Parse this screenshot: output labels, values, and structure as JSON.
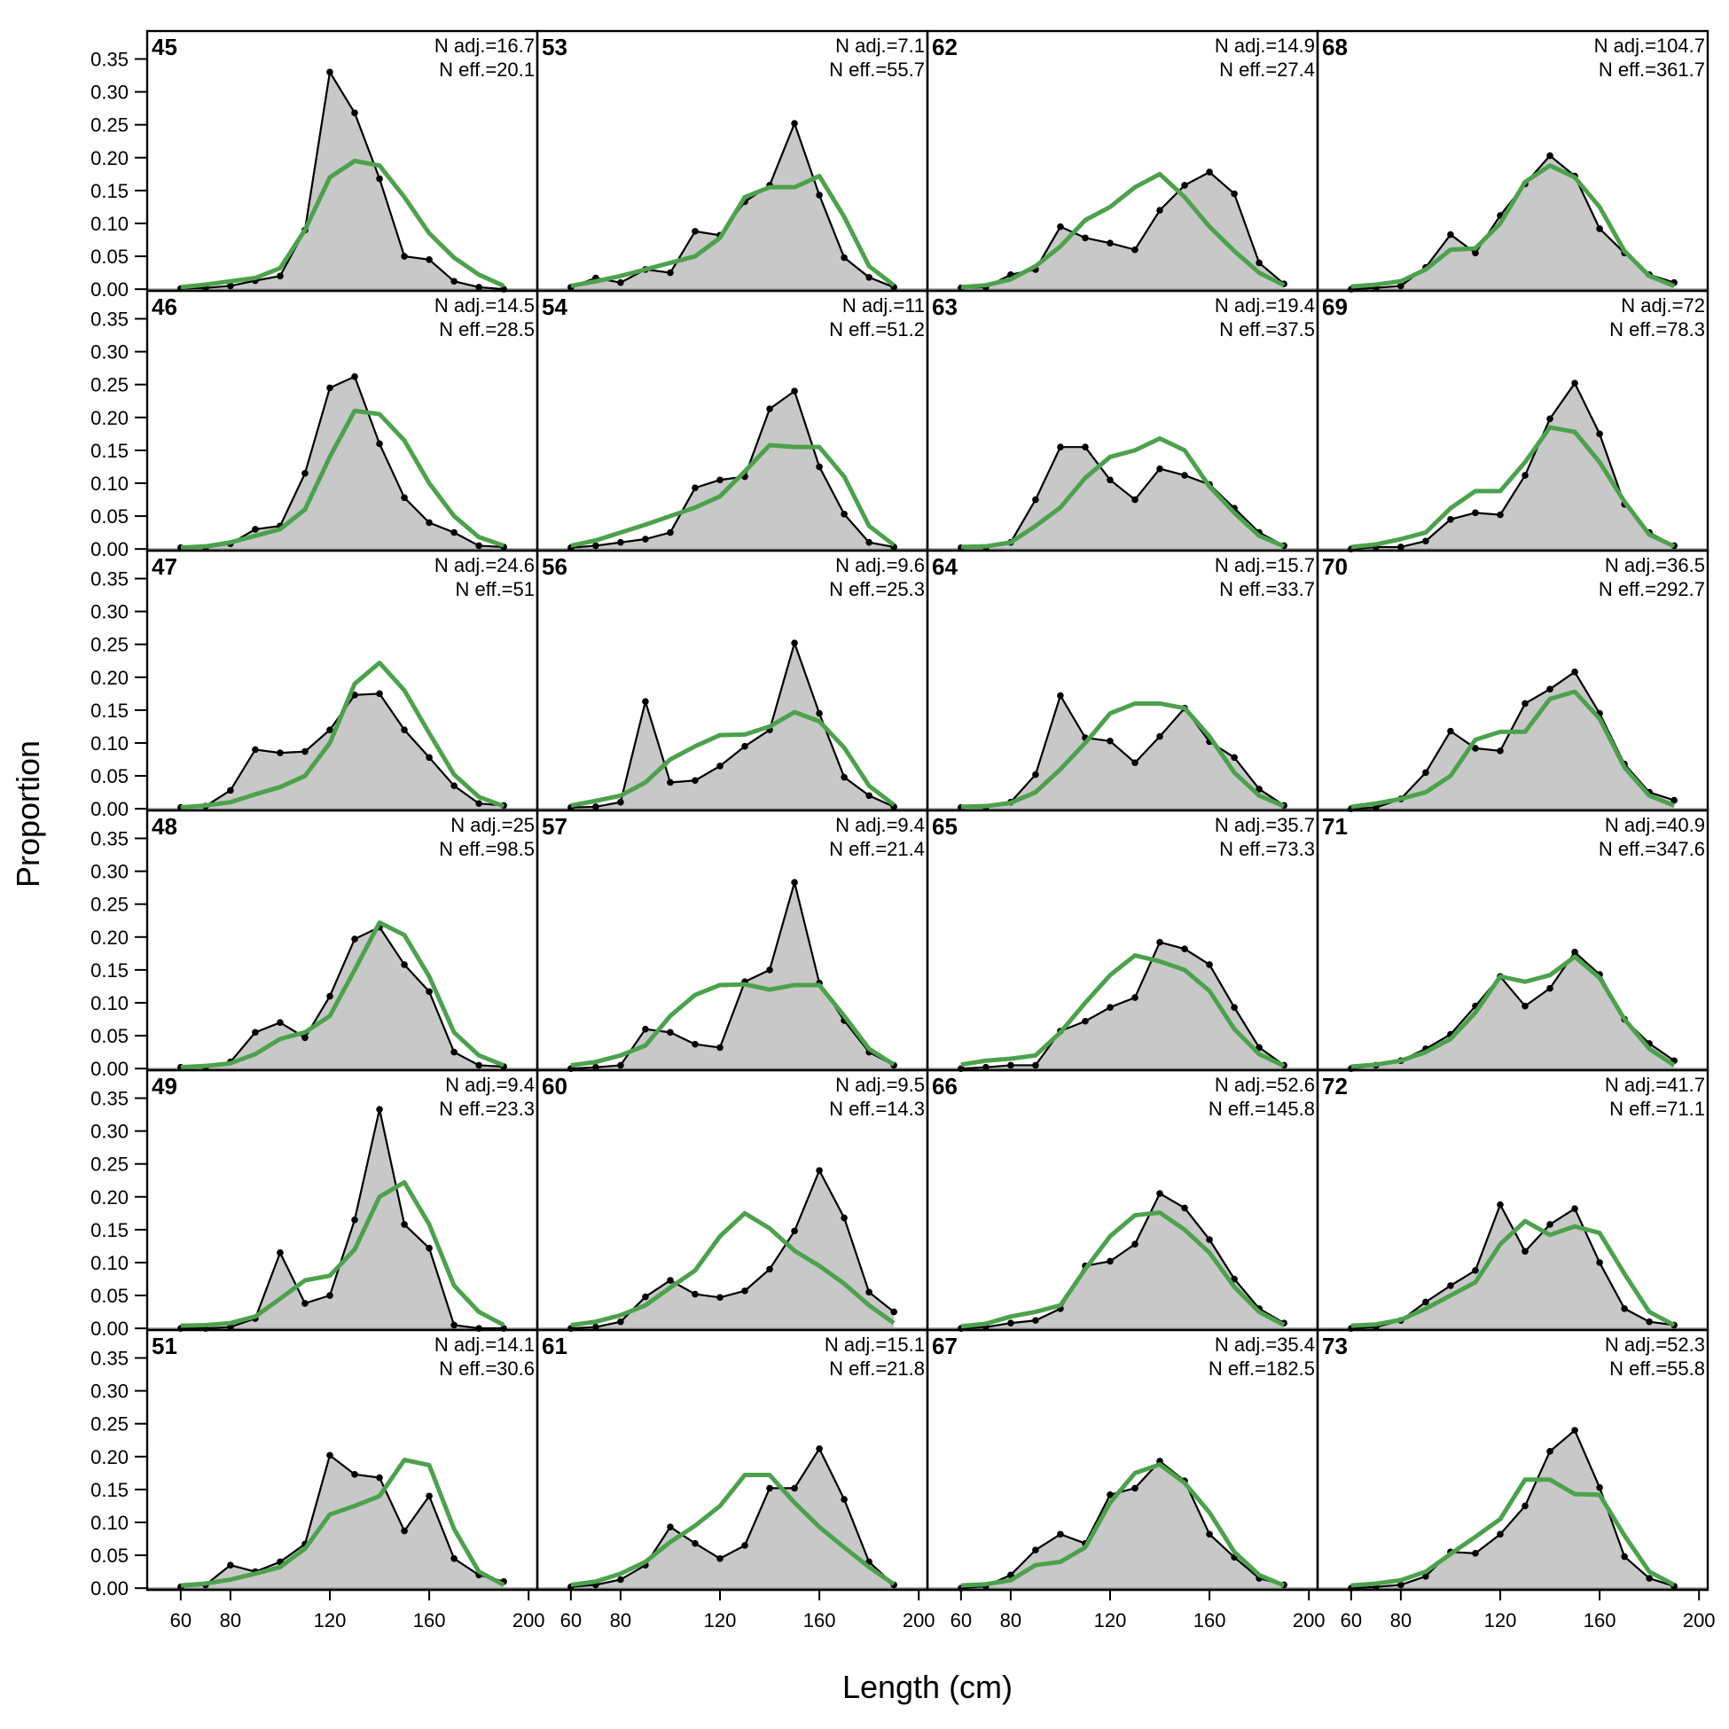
{
  "chart_data": {
    "type": "line",
    "xlabel": "Length (cm)",
    "ylabel": "Proportion",
    "xlim": [
      46.5,
      203.5
    ],
    "ylim": [
      -0.0025,
      0.3925
    ],
    "xticks": [
      60,
      80,
      120,
      160,
      200
    ],
    "yticks": [
      0.0,
      0.05,
      0.1,
      0.15,
      0.2,
      0.25,
      0.3,
      0.35
    ],
    "ytick_labels": [
      "0.00",
      "0.05",
      "0.10",
      "0.15",
      "0.20",
      "0.25",
      "0.30",
      "0.35"
    ],
    "x": [
      60,
      70,
      80,
      90,
      100,
      110,
      120,
      130,
      140,
      150,
      160,
      170,
      180,
      190
    ],
    "colors": {
      "observed_line": "#000000",
      "observed_fill": "#c8c8c8",
      "expected_line": "#4ca24c",
      "zero_line": "#aaaaaa"
    },
    "panel_columns": 4,
    "panel_rows": 6,
    "panels": [
      {
        "id": "45",
        "n_adj": "N adj.=16.7",
        "n_eff": "N eff.=20.1",
        "obs": [
          0.001,
          0.002,
          0.005,
          0.013,
          0.02,
          0.09,
          0.33,
          0.268,
          0.168,
          0.05,
          0.045,
          0.012,
          0.003,
          0.0
        ],
        "exp": [
          0.003,
          0.007,
          0.012,
          0.017,
          0.032,
          0.09,
          0.17,
          0.195,
          0.188,
          0.14,
          0.085,
          0.048,
          0.022,
          0.005
        ]
      },
      {
        "id": "53",
        "n_adj": "N adj.=7.1",
        "n_eff": "N eff.=55.7",
        "obs": [
          0.003,
          0.017,
          0.01,
          0.03,
          0.025,
          0.088,
          0.082,
          0.133,
          0.158,
          0.252,
          0.143,
          0.048,
          0.018,
          0.003
        ],
        "exp": [
          0.005,
          0.012,
          0.02,
          0.03,
          0.04,
          0.05,
          0.078,
          0.14,
          0.155,
          0.155,
          0.172,
          0.11,
          0.035,
          0.006
        ]
      },
      {
        "id": "62",
        "n_adj": "N adj.=14.9",
        "n_eff": "N eff.=27.4",
        "obs": [
          0.002,
          0.003,
          0.022,
          0.03,
          0.095,
          0.078,
          0.07,
          0.06,
          0.12,
          0.158,
          0.178,
          0.145,
          0.04,
          0.008
        ],
        "exp": [
          0.003,
          0.006,
          0.015,
          0.035,
          0.065,
          0.105,
          0.125,
          0.155,
          0.175,
          0.14,
          0.095,
          0.058,
          0.025,
          0.006
        ]
      },
      {
        "id": "68",
        "n_adj": "N adj.=104.7",
        "n_eff": "N eff.=361.7",
        "obs": [
          0.0,
          0.002,
          0.005,
          0.033,
          0.083,
          0.055,
          0.112,
          0.16,
          0.203,
          0.172,
          0.092,
          0.055,
          0.022,
          0.01
        ],
        "exp": [
          0.004,
          0.007,
          0.012,
          0.03,
          0.06,
          0.062,
          0.1,
          0.163,
          0.188,
          0.17,
          0.125,
          0.058,
          0.02,
          0.005
        ]
      },
      {
        "id": "46",
        "n_adj": "N adj.=14.5",
        "n_eff": "N eff.=28.5",
        "obs": [
          0.002,
          0.002,
          0.008,
          0.03,
          0.035,
          0.115,
          0.245,
          0.262,
          0.16,
          0.078,
          0.04,
          0.025,
          0.005,
          0.003
        ],
        "exp": [
          0.002,
          0.004,
          0.01,
          0.02,
          0.03,
          0.06,
          0.14,
          0.21,
          0.205,
          0.165,
          0.1,
          0.05,
          0.018,
          0.005
        ]
      },
      {
        "id": "54",
        "n_adj": "N adj.=11",
        "n_eff": "N eff.=51.2",
        "obs": [
          0.002,
          0.005,
          0.01,
          0.015,
          0.025,
          0.093,
          0.105,
          0.11,
          0.213,
          0.24,
          0.125,
          0.053,
          0.01,
          0.003
        ],
        "exp": [
          0.005,
          0.013,
          0.025,
          0.037,
          0.05,
          0.063,
          0.08,
          0.118,
          0.158,
          0.155,
          0.155,
          0.11,
          0.035,
          0.006
        ]
      },
      {
        "id": "63",
        "n_adj": "N adj.=19.4",
        "n_eff": "N eff.=37.5",
        "obs": [
          0.002,
          0.002,
          0.01,
          0.075,
          0.155,
          0.155,
          0.105,
          0.075,
          0.122,
          0.112,
          0.098,
          0.062,
          0.025,
          0.005
        ],
        "exp": [
          0.003,
          0.004,
          0.01,
          0.035,
          0.063,
          0.108,
          0.14,
          0.15,
          0.168,
          0.15,
          0.095,
          0.055,
          0.02,
          0.004
        ]
      },
      {
        "id": "69",
        "n_adj": "N adj.=72",
        "n_eff": "N eff.=78.3",
        "obs": [
          0.0,
          0.003,
          0.003,
          0.012,
          0.045,
          0.055,
          0.052,
          0.112,
          0.198,
          0.252,
          0.175,
          0.068,
          0.025,
          0.005
        ],
        "exp": [
          0.003,
          0.007,
          0.015,
          0.025,
          0.062,
          0.088,
          0.088,
          0.132,
          0.185,
          0.178,
          0.132,
          0.072,
          0.022,
          0.004
        ]
      },
      {
        "id": "47",
        "n_adj": "N adj.=24.6",
        "n_eff": "N eff.=51",
        "obs": [
          0.002,
          0.004,
          0.028,
          0.09,
          0.085,
          0.087,
          0.12,
          0.173,
          0.175,
          0.12,
          0.078,
          0.035,
          0.008,
          0.005
        ],
        "exp": [
          0.002,
          0.005,
          0.01,
          0.022,
          0.033,
          0.05,
          0.1,
          0.19,
          0.222,
          0.18,
          0.115,
          0.052,
          0.018,
          0.004
        ]
      },
      {
        "id": "56",
        "n_adj": "N adj.=9.6",
        "n_eff": "N eff.=25.3",
        "obs": [
          0.002,
          0.003,
          0.01,
          0.163,
          0.04,
          0.043,
          0.065,
          0.095,
          0.12,
          0.252,
          0.145,
          0.048,
          0.02,
          0.003
        ],
        "exp": [
          0.005,
          0.012,
          0.02,
          0.04,
          0.075,
          0.095,
          0.112,
          0.113,
          0.125,
          0.147,
          0.133,
          0.093,
          0.035,
          0.006
        ]
      },
      {
        "id": "64",
        "n_adj": "N adj.=15.7",
        "n_eff": "N eff.=33.7",
        "obs": [
          0.002,
          0.002,
          0.01,
          0.052,
          0.172,
          0.108,
          0.103,
          0.07,
          0.11,
          0.153,
          0.102,
          0.078,
          0.03,
          0.005
        ],
        "exp": [
          0.003,
          0.004,
          0.009,
          0.025,
          0.06,
          0.1,
          0.145,
          0.16,
          0.16,
          0.153,
          0.11,
          0.055,
          0.02,
          0.004
        ]
      },
      {
        "id": "70",
        "n_adj": "N adj.=36.5",
        "n_eff": "N eff.=292.7",
        "obs": [
          0.0,
          0.002,
          0.015,
          0.055,
          0.118,
          0.092,
          0.088,
          0.16,
          0.182,
          0.208,
          0.145,
          0.068,
          0.025,
          0.013
        ],
        "exp": [
          0.003,
          0.008,
          0.015,
          0.025,
          0.05,
          0.105,
          0.117,
          0.117,
          0.167,
          0.178,
          0.137,
          0.063,
          0.02,
          0.005
        ]
      },
      {
        "id": "48",
        "n_adj": "N adj.=25",
        "n_eff": "N eff.=98.5",
        "obs": [
          0.002,
          0.002,
          0.01,
          0.055,
          0.07,
          0.047,
          0.11,
          0.197,
          0.215,
          0.158,
          0.117,
          0.025,
          0.005,
          0.003
        ],
        "exp": [
          0.002,
          0.004,
          0.008,
          0.022,
          0.045,
          0.055,
          0.08,
          0.15,
          0.222,
          0.203,
          0.14,
          0.055,
          0.02,
          0.005
        ]
      },
      {
        "id": "57",
        "n_adj": "N adj.=9.4",
        "n_eff": "N eff.=21.4",
        "obs": [
          0.0,
          0.002,
          0.005,
          0.06,
          0.055,
          0.037,
          0.032,
          0.132,
          0.15,
          0.283,
          0.13,
          0.073,
          0.025,
          0.005
        ],
        "exp": [
          0.005,
          0.01,
          0.02,
          0.035,
          0.08,
          0.112,
          0.127,
          0.128,
          0.12,
          0.127,
          0.127,
          0.08,
          0.03,
          0.006
        ]
      },
      {
        "id": "65",
        "n_adj": "N adj.=35.7",
        "n_eff": "N eff.=73.3",
        "obs": [
          0.0,
          0.002,
          0.005,
          0.005,
          0.057,
          0.072,
          0.093,
          0.108,
          0.192,
          0.182,
          0.158,
          0.093,
          0.032,
          0.005
        ],
        "exp": [
          0.006,
          0.012,
          0.015,
          0.02,
          0.055,
          0.1,
          0.142,
          0.172,
          0.163,
          0.15,
          0.118,
          0.06,
          0.022,
          0.004
        ]
      },
      {
        "id": "71",
        "n_adj": "N adj.=40.9",
        "n_eff": "N eff.=347.6",
        "obs": [
          0.0,
          0.005,
          0.012,
          0.03,
          0.052,
          0.095,
          0.14,
          0.095,
          0.122,
          0.177,
          0.143,
          0.075,
          0.038,
          0.012
        ],
        "exp": [
          0.003,
          0.006,
          0.012,
          0.025,
          0.045,
          0.085,
          0.14,
          0.132,
          0.142,
          0.17,
          0.138,
          0.075,
          0.03,
          0.005
        ]
      },
      {
        "id": "49",
        "n_adj": "N adj.=9.4",
        "n_eff": "N eff.=23.3",
        "obs": [
          0.0,
          0.0,
          0.002,
          0.015,
          0.115,
          0.038,
          0.05,
          0.165,
          0.333,
          0.158,
          0.122,
          0.005,
          0.0,
          0.0
        ],
        "exp": [
          0.004,
          0.005,
          0.008,
          0.018,
          0.045,
          0.073,
          0.08,
          0.12,
          0.2,
          0.222,
          0.158,
          0.065,
          0.025,
          0.005
        ]
      },
      {
        "id": "60",
        "n_adj": "N adj.=9.5",
        "n_eff": "N eff.=14.3",
        "obs": [
          0.0,
          0.002,
          0.01,
          0.048,
          0.073,
          0.052,
          0.047,
          0.057,
          0.09,
          0.148,
          0.24,
          0.168,
          0.055,
          0.025
        ],
        "exp": [
          0.005,
          0.01,
          0.02,
          0.035,
          0.062,
          0.088,
          0.14,
          0.175,
          0.152,
          0.118,
          0.095,
          0.068,
          0.035,
          0.008
        ]
      },
      {
        "id": "66",
        "n_adj": "N adj.=52.6",
        "n_eff": "N eff.=145.8",
        "obs": [
          0.0,
          0.002,
          0.008,
          0.012,
          0.03,
          0.095,
          0.102,
          0.128,
          0.205,
          0.183,
          0.135,
          0.075,
          0.03,
          0.008
        ],
        "exp": [
          0.003,
          0.007,
          0.018,
          0.025,
          0.035,
          0.09,
          0.14,
          0.172,
          0.176,
          0.15,
          0.115,
          0.063,
          0.025,
          0.005
        ]
      },
      {
        "id": "72",
        "n_adj": "N adj.=41.7",
        "n_eff": "N eff.=71.1",
        "obs": [
          0.0,
          0.002,
          0.012,
          0.04,
          0.065,
          0.088,
          0.188,
          0.117,
          0.158,
          0.182,
          0.1,
          0.03,
          0.01,
          0.005
        ],
        "exp": [
          0.004,
          0.006,
          0.013,
          0.03,
          0.05,
          0.07,
          0.128,
          0.163,
          0.142,
          0.155,
          0.145,
          0.083,
          0.025,
          0.005
        ]
      },
      {
        "id": "51",
        "n_adj": "N adj.=14.1",
        "n_eff": "N eff.=30.6",
        "obs": [
          0.002,
          0.005,
          0.035,
          0.025,
          0.04,
          0.067,
          0.202,
          0.173,
          0.168,
          0.087,
          0.14,
          0.045,
          0.02,
          0.01
        ],
        "exp": [
          0.004,
          0.007,
          0.013,
          0.022,
          0.032,
          0.06,
          0.112,
          0.125,
          0.14,
          0.195,
          0.187,
          0.09,
          0.025,
          0.005
        ]
      },
      {
        "id": "61",
        "n_adj": "N adj.=15.1",
        "n_eff": "N eff.=21.8",
        "obs": [
          0.002,
          0.005,
          0.013,
          0.035,
          0.093,
          0.068,
          0.045,
          0.065,
          0.152,
          0.152,
          0.212,
          0.135,
          0.04,
          0.005
        ],
        "exp": [
          0.005,
          0.01,
          0.022,
          0.04,
          0.07,
          0.095,
          0.125,
          0.172,
          0.172,
          0.13,
          0.093,
          0.062,
          0.032,
          0.006
        ]
      },
      {
        "id": "67",
        "n_adj": "N adj.=35.4",
        "n_eff": "N eff.=182.5",
        "obs": [
          0.0,
          0.003,
          0.02,
          0.058,
          0.082,
          0.068,
          0.142,
          0.152,
          0.193,
          0.163,
          0.082,
          0.047,
          0.015,
          0.005
        ],
        "exp": [
          0.004,
          0.006,
          0.012,
          0.035,
          0.04,
          0.062,
          0.13,
          0.175,
          0.188,
          0.16,
          0.115,
          0.055,
          0.02,
          0.004
        ]
      },
      {
        "id": "73",
        "n_adj": "N adj.=52.3",
        "n_eff": "N eff.=55.8",
        "obs": [
          0.0,
          0.002,
          0.005,
          0.018,
          0.055,
          0.053,
          0.082,
          0.125,
          0.208,
          0.24,
          0.153,
          0.048,
          0.015,
          0.003
        ],
        "exp": [
          0.004,
          0.007,
          0.012,
          0.025,
          0.052,
          0.078,
          0.105,
          0.165,
          0.165,
          0.143,
          0.142,
          0.08,
          0.025,
          0.005
        ]
      }
    ]
  }
}
